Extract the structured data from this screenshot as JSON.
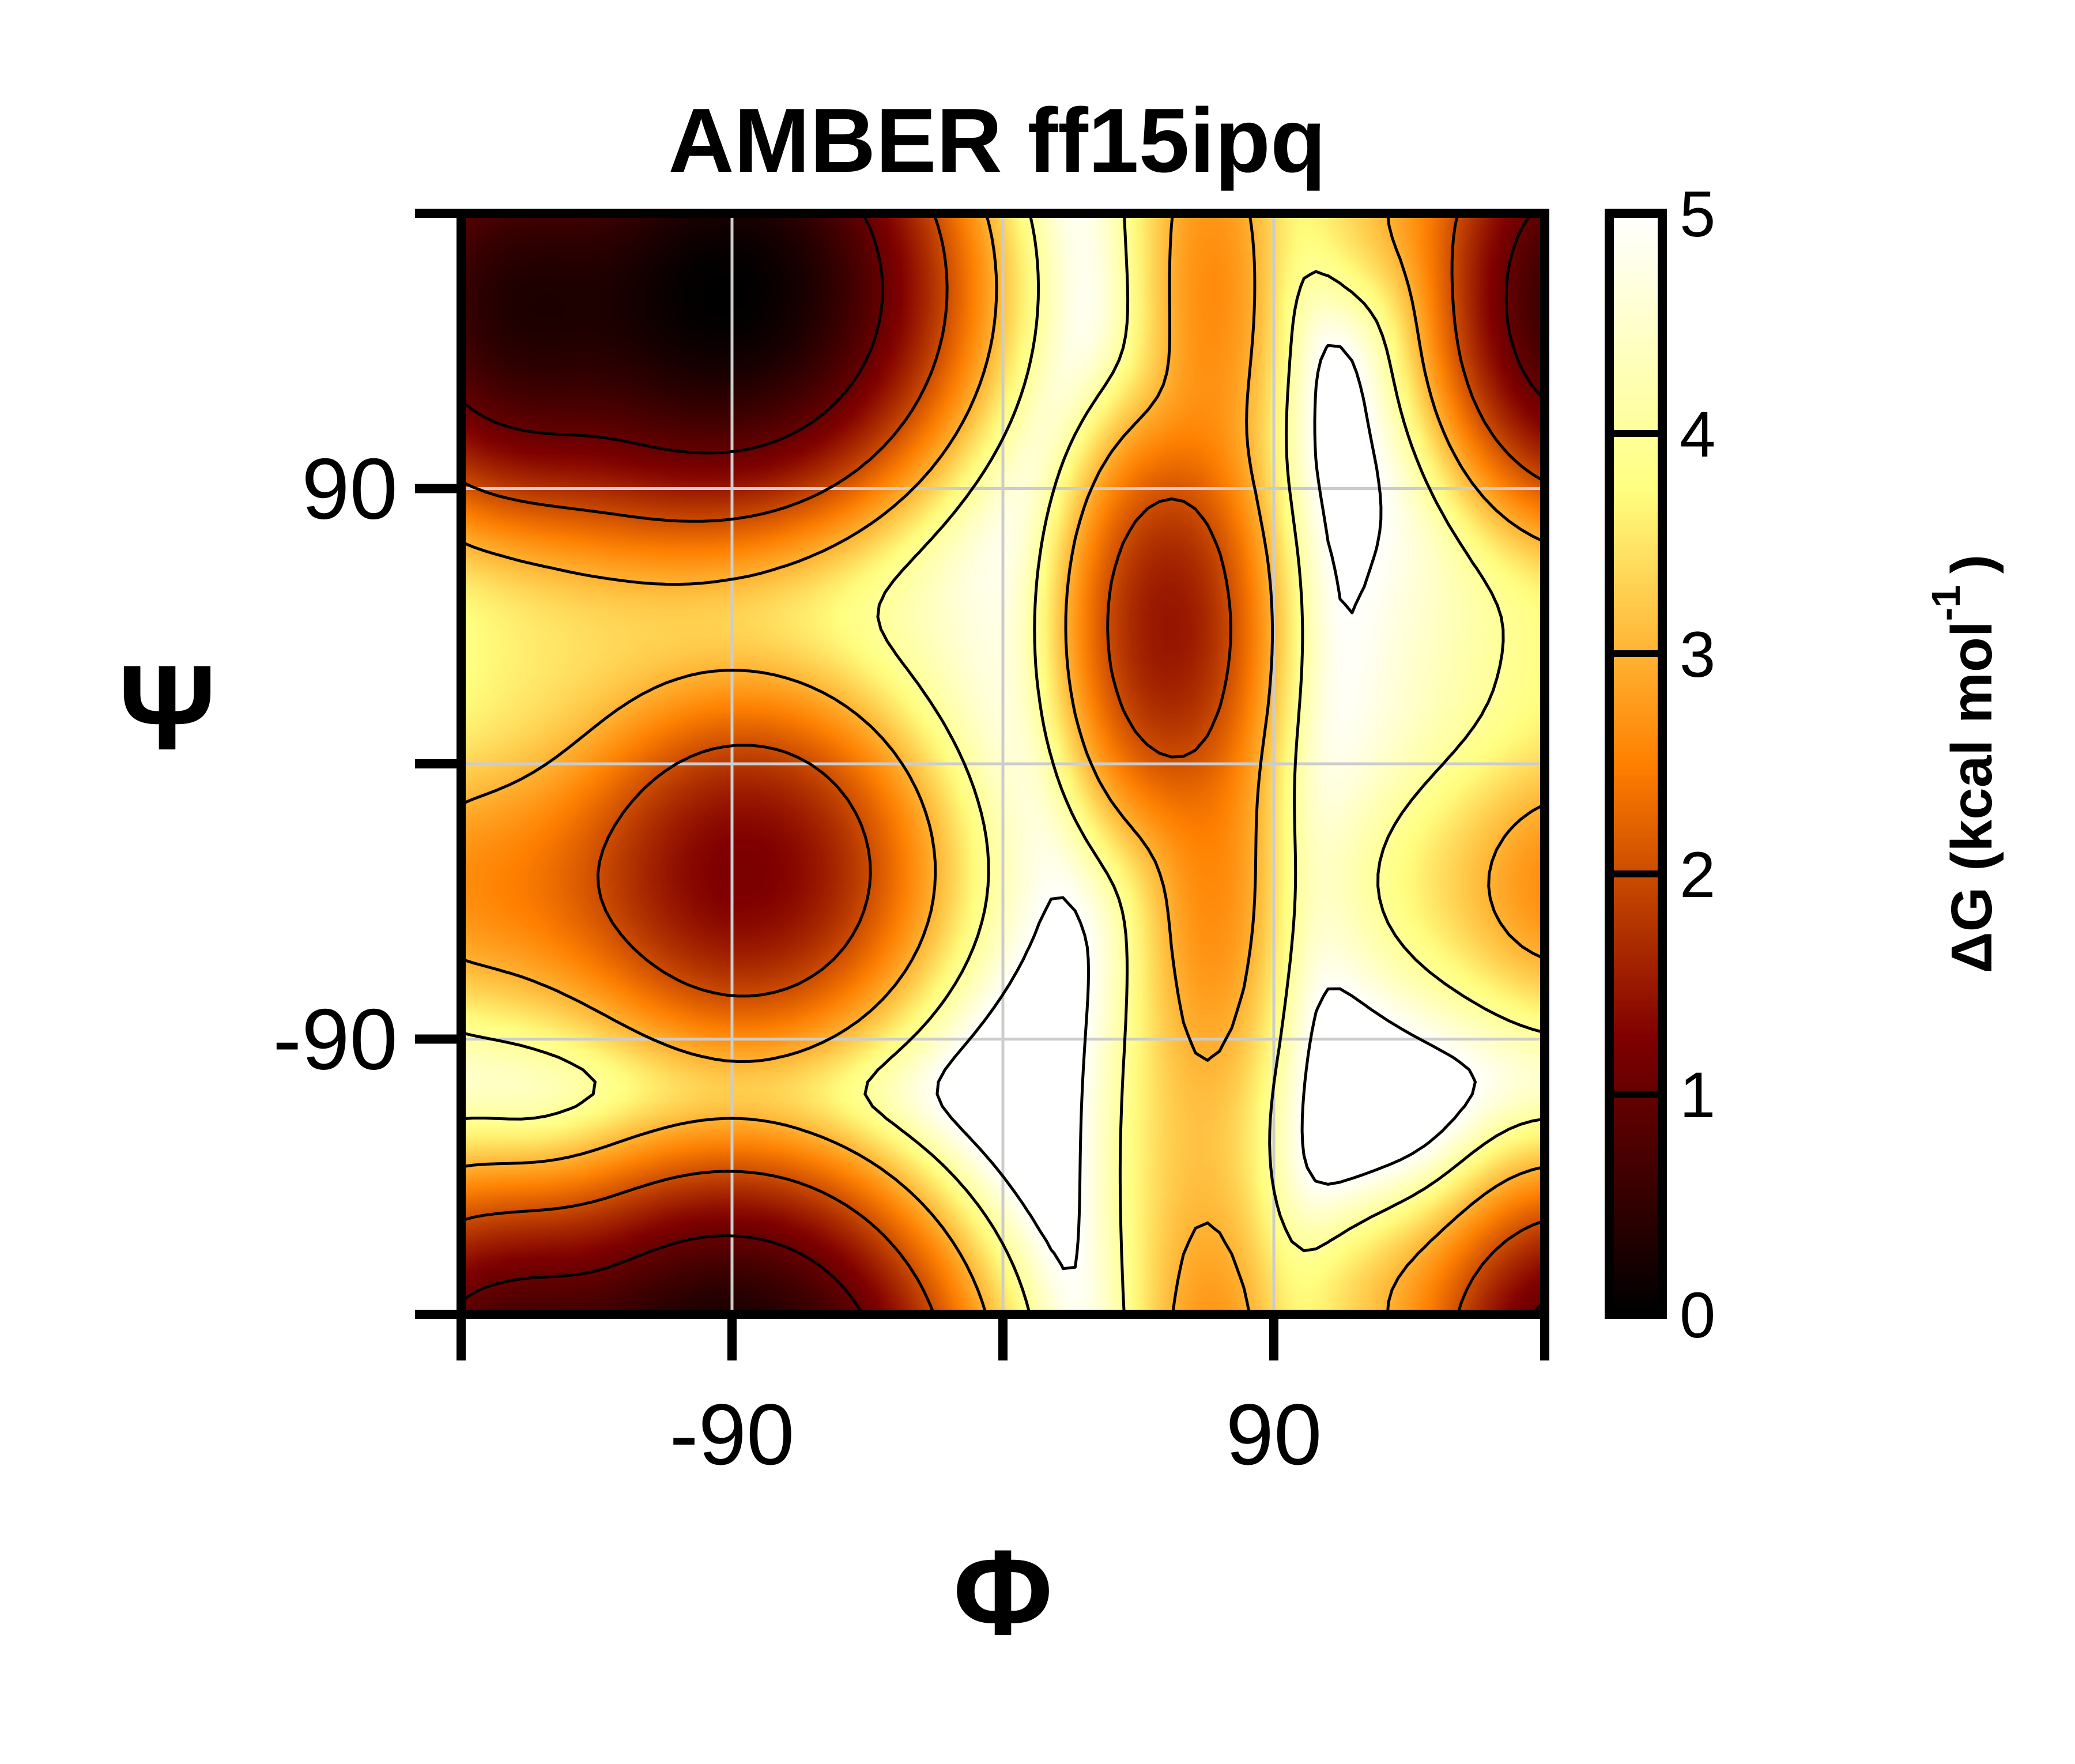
{
  "chart_data": {
    "type": "heatmap",
    "title": "AMBER ff15ipq",
    "xlabel": "Φ",
    "ylabel": "Ψ",
    "xlim": [
      -180,
      180
    ],
    "ylim": [
      -180,
      180
    ],
    "x_ticks": [
      -180,
      -90,
      0,
      90,
      180
    ],
    "x_tick_labels": [
      "",
      "-90",
      "",
      "90",
      ""
    ],
    "y_ticks": [
      -180,
      -90,
      0,
      90,
      180
    ],
    "y_tick_labels": [
      "",
      "-90",
      "",
      "90",
      ""
    ],
    "grid": true,
    "colormap": "afmhot",
    "colorbar": {
      "label": "ΔG (kcal mol",
      "label_sup": "-1",
      "label_close": ")",
      "range": [
        0,
        5
      ],
      "ticks": [
        "0",
        "1",
        "2",
        "3",
        "4",
        "5"
      ],
      "levels": [
        0,
        1,
        2,
        3,
        4,
        5
      ],
      "position": "right"
    },
    "contour_levels": [
      1,
      2,
      3,
      4,
      5
    ],
    "free_energy_basins": [
      {
        "phi": -160,
        "psi": 150,
        "dG": 0.6,
        "spread_phi": 20,
        "spread_psi": 25
      },
      {
        "phi": -90,
        "psi": 155,
        "dG": 0.2,
        "spread_phi": 28,
        "spread_psi": 28
      },
      {
        "phi": -125,
        "psi": 140,
        "dG": 1.2,
        "spread_phi": 30,
        "spread_psi": 28
      },
      {
        "phi": -85,
        "psi": -35,
        "dG": 1.4,
        "spread_phi": 25,
        "spread_psi": 25
      },
      {
        "phi": -130,
        "psi": -40,
        "dG": 2.6,
        "spread_phi": 45,
        "spread_psi": 22
      },
      {
        "phi": -120,
        "psi": 20,
        "dG": 3.6,
        "spread_phi": 55,
        "spread_psi": 55
      },
      {
        "phi": 55,
        "psi": 45,
        "dG": 1.6,
        "spread_phi": 15,
        "spread_psi": 30
      },
      {
        "phi": 70,
        "psi": 150,
        "dG": 2.8,
        "spread_phi": 12,
        "spread_psi": 40
      },
      {
        "phi": 70,
        "psi": -40,
        "dG": 2.8,
        "spread_phi": 12,
        "spread_psi": 40
      },
      {
        "phi": 60,
        "psi": -130,
        "dG": 3.6,
        "spread_phi": 15,
        "spread_psi": 50
      },
      {
        "phi": 178,
        "psi": 155,
        "dG": 1.8,
        "spread_phi": 15,
        "spread_psi": 30
      },
      {
        "phi": -150,
        "psi": -178,
        "dG": 2.2,
        "spread_phi": 45,
        "spread_psi": 18
      },
      {
        "phi": 178,
        "psi": -40,
        "dG": 3.8,
        "spread_phi": 12,
        "spread_psi": 20
      }
    ]
  },
  "colors": {
    "cmap_stops": [
      "#000000",
      "#800000",
      "#ff8000",
      "#ffff80",
      "#ffffff"
    ],
    "grid": "#cccccc",
    "frame": "#000000",
    "contour": "#000000"
  }
}
